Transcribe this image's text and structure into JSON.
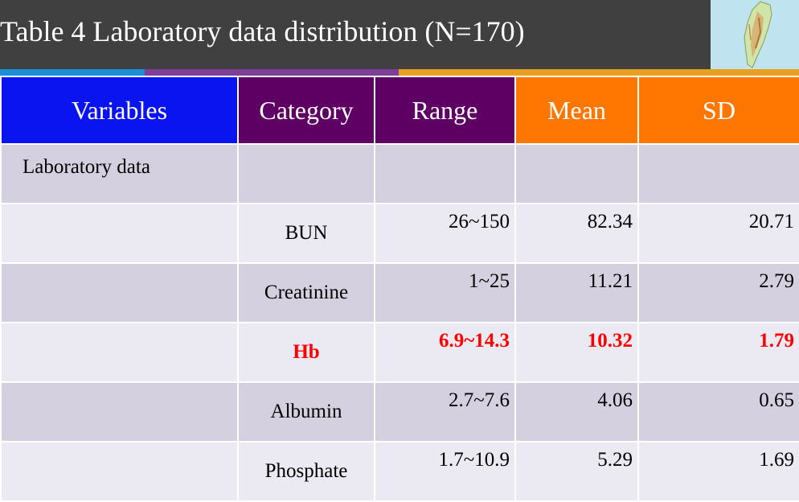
{
  "title": "Table 4 Laboratory data distribution (N=170)",
  "headers": [
    "Variables",
    "Category",
    "Range",
    "Mean",
    "SD"
  ],
  "section_label": "Laboratory data",
  "rows": [
    {
      "category": "BUN",
      "range": "26~150",
      "mean": "82.34",
      "sd": "20.71",
      "highlight": false
    },
    {
      "category": "Creatinine",
      "range": "1~25",
      "mean": "11.21",
      "sd": "2.79",
      "highlight": false
    },
    {
      "category": "Hb",
      "range": "6.9~14.3",
      "mean": "10.32",
      "sd": "1.79",
      "highlight": true
    },
    {
      "category": "Albumin",
      "range": "2.7~7.6",
      "mean": "4.06",
      "sd": "0.65",
      "highlight": false
    },
    {
      "category": "Phosphate",
      "range": "1.7~10.9",
      "mean": "5.29",
      "sd": "1.69",
      "highlight": false
    }
  ],
  "colors": {
    "header_bar": "#404040",
    "variables_header": "#0a14f0",
    "category_header": "#5e0063",
    "mean_header": "#ff7700",
    "highlight_text": "#ff0000"
  }
}
